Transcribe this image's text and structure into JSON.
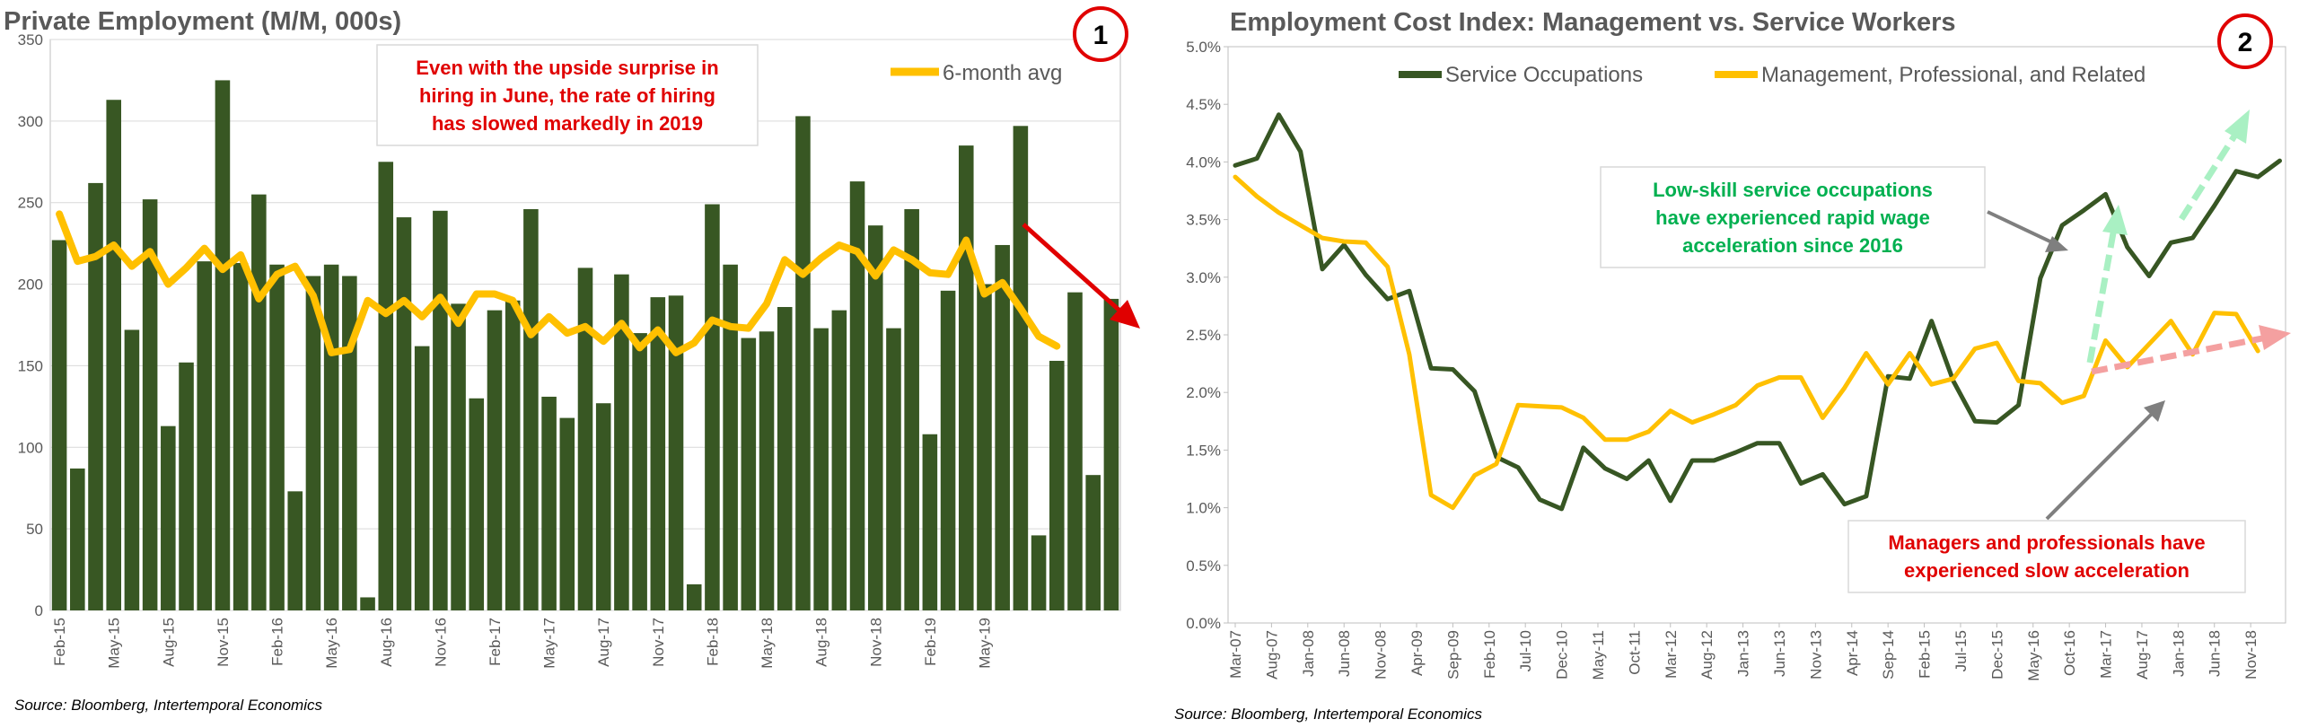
{
  "chart_data": [
    {
      "type": "bar",
      "title": "Private Employment (M/M, 000s)",
      "badge": "1",
      "ylim": [
        0,
        350
      ],
      "yticks": [
        0,
        50,
        100,
        150,
        200,
        250,
        300,
        350
      ],
      "x_tick_labels": [
        "Feb-15",
        "May-15",
        "Aug-15",
        "Nov-15",
        "Feb-16",
        "May-16",
        "Aug-16",
        "Nov-16",
        "Feb-17",
        "May-17",
        "Aug-17",
        "Nov-17",
        "Feb-18",
        "May-18",
        "Aug-18",
        "Nov-18",
        "Feb-19",
        "May-19"
      ],
      "grid": true,
      "legend_position": "top-right",
      "series": [
        {
          "name": "",
          "kind": "bar",
          "color": "#385723",
          "values": [
            227,
            87,
            262,
            313,
            172,
            252,
            113,
            152,
            214,
            325,
            213,
            255,
            212,
            73,
            205,
            212,
            205,
            8,
            275,
            241,
            162,
            245,
            188,
            130,
            184,
            190,
            246,
            131,
            118,
            210,
            127,
            206,
            170,
            192,
            193,
            16,
            249,
            212,
            167,
            171,
            186,
            303,
            173,
            184,
            263,
            236,
            173,
            246,
            108,
            196,
            285,
            200,
            224,
            297,
            46,
            153,
            195,
            83,
            191
          ]
        },
        {
          "name": "6-month avg",
          "kind": "line",
          "color": "#ffc000",
          "values": [
            243,
            214,
            217,
            224,
            211,
            220,
            200,
            210,
            222,
            209,
            218,
            191,
            206,
            211,
            193,
            158,
            160,
            190,
            182,
            190,
            180,
            192,
            176,
            194,
            194,
            190,
            169,
            180,
            170,
            174,
            165,
            176,
            161,
            172,
            158,
            164,
            178,
            174,
            173,
            188,
            215,
            206,
            216,
            224,
            220,
            205,
            221,
            215,
            207,
            206,
            227,
            194,
            201,
            185,
            168,
            162
          ]
        }
      ],
      "annotation": [
        "Even with the upside surprise in",
        "hiring in June, the rate of hiring",
        "has slowed markedly in 2019"
      ],
      "source": "Source: Bloomberg, Intertemporal Economics"
    },
    {
      "type": "line",
      "title": "Employment Cost Index: Management vs. Service Workers",
      "badge": "2",
      "ylim": [
        0.0,
        5.0
      ],
      "yticks": [
        "0.0%",
        "0.5%",
        "1.0%",
        "1.5%",
        "2.0%",
        "2.5%",
        "3.0%",
        "3.5%",
        "4.0%",
        "4.5%",
        "5.0%"
      ],
      "x_tick_labels": [
        "Mar-07",
        "Aug-07",
        "Jan-08",
        "Jun-08",
        "Nov-08",
        "Apr-09",
        "Sep-09",
        "Feb-10",
        "Jul-10",
        "Dec-10",
        "May-11",
        "Oct-11",
        "Mar-12",
        "Aug-12",
        "Jan-13",
        "Jun-13",
        "Nov-13",
        "Apr-14",
        "Sep-14",
        "Feb-15",
        "Jul-15",
        "Dec-15",
        "May-16",
        "Oct-16",
        "Mar-17",
        "Aug-17",
        "Jan-18",
        "Jun-18",
        "Nov-18"
      ],
      "grid": false,
      "legend_position": "top",
      "series": [
        {
          "name": "Service Occupations",
          "color": "#375623",
          "values": [
            3.97,
            4.03,
            4.41,
            4.09,
            3.07,
            3.28,
            3.02,
            2.81,
            2.88,
            2.21,
            2.2,
            2.01,
            1.44,
            1.35,
            1.07,
            0.99,
            1.52,
            1.34,
            1.25,
            1.41,
            1.06,
            1.41,
            1.41,
            1.48,
            1.56,
            1.56,
            1.21,
            1.29,
            1.03,
            1.1,
            2.14,
            2.12,
            2.62,
            2.1,
            1.75,
            1.74,
            1.89,
            2.99,
            3.45,
            3.58,
            3.72,
            3.26,
            3.01,
            3.3,
            3.34,
            3.62,
            3.92,
            3.87,
            4.01
          ]
        },
        {
          "name": "Management, Professional, and Related",
          "color": "#ffc000",
          "values": [
            3.87,
            3.7,
            3.56,
            3.45,
            3.34,
            3.31,
            3.3,
            3.09,
            2.33,
            1.11,
            1.0,
            1.28,
            1.38,
            1.89,
            1.88,
            1.87,
            1.78,
            1.59,
            1.59,
            1.66,
            1.84,
            1.74,
            1.81,
            1.89,
            2.06,
            2.13,
            2.13,
            1.78,
            2.04,
            2.34,
            2.07,
            2.34,
            2.07,
            2.12,
            2.38,
            2.43,
            2.1,
            2.08,
            1.91,
            1.97,
            2.45,
            2.22,
            2.42,
            2.62,
            2.33,
            2.69,
            2.68,
            2.36
          ]
        }
      ],
      "annotation_green": [
        "Low-skill service occupations",
        "have experienced rapid wage",
        "acceleration since 2016"
      ],
      "annotation_red": [
        "Managers and professionals have",
        "experienced slow acceleration"
      ],
      "source": "Source: Bloomberg, Intertemporal Economics"
    }
  ]
}
